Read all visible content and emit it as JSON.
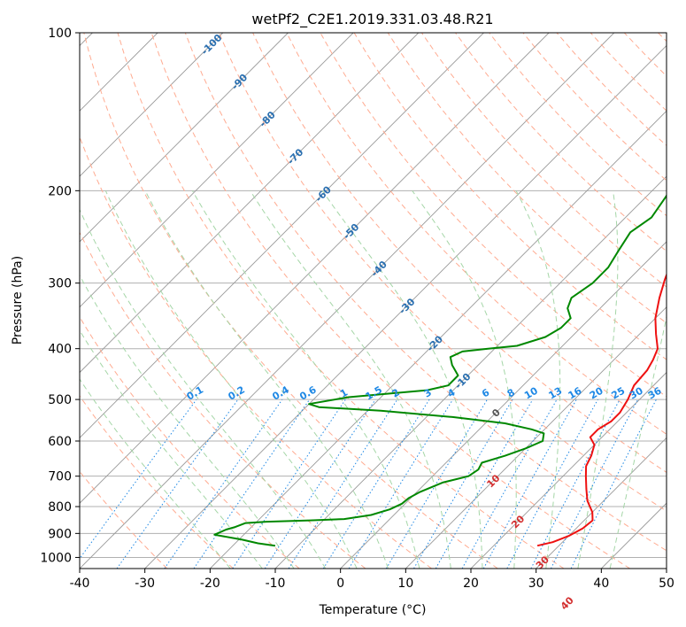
{
  "chart_data": {
    "type": "line",
    "subtype": "skew-t log-p diagram",
    "title": "wetPf2_C2E1.2019.331.03.48.R21",
    "xlabel": "Temperature (°C)",
    "ylabel": "Pressure (hPa)",
    "xlim": [
      -40,
      50
    ],
    "ylim": [
      1050,
      100
    ],
    "y_scale": "log",
    "x_ticks": [
      "-40",
      "-30",
      "-20",
      "-10",
      "0",
      "10",
      "20",
      "30",
      "40",
      "50"
    ],
    "y_ticks": [
      "100",
      "200",
      "300",
      "400",
      "500",
      "600",
      "700",
      "800",
      "900",
      "1000"
    ],
    "grid": true,
    "colors": {
      "temperature": "#ee1111",
      "dewpoint": "#008800",
      "isotherm": "#999999",
      "dry_adiabat": "#ffab91",
      "moist_adiabat": "#a5d6a7",
      "mixing_ratio": "#1e88e5",
      "saturation": "#d4b896"
    },
    "series": [
      {
        "key": "temperature",
        "points": [
          [
            26.7,
            950
          ],
          [
            28.5,
            935
          ],
          [
            30.0,
            910
          ],
          [
            31.0,
            880
          ],
          [
            31.3,
            850
          ],
          [
            30.0,
            820
          ],
          [
            27.5,
            780
          ],
          [
            25.5,
            740
          ],
          [
            23.5,
            700
          ],
          [
            22.0,
            670
          ],
          [
            21.2,
            640
          ],
          [
            20.0,
            610
          ],
          [
            18.2,
            590
          ],
          [
            18.2,
            570
          ],
          [
            19.0,
            550
          ],
          [
            19.0,
            530
          ],
          [
            18.2,
            500
          ],
          [
            17.0,
            470
          ],
          [
            16.7,
            440
          ],
          [
            16.0,
            420
          ],
          [
            15.0,
            400
          ],
          [
            12.5,
            375
          ],
          [
            10.0,
            350
          ],
          [
            7.5,
            320
          ],
          [
            5.5,
            295
          ],
          [
            4.0,
            275
          ],
          [
            3.5,
            255
          ],
          [
            2.5,
            235
          ],
          [
            1.5,
            210
          ],
          [
            0.8,
            190
          ],
          [
            0.5,
            170
          ],
          [
            1.0,
            150
          ],
          [
            2.0,
            135
          ],
          [
            2.0,
            125
          ],
          [
            1.5,
            115
          ],
          [
            1.0,
            100
          ]
        ]
      },
      {
        "key": "dewpoint",
        "points": [
          [
            -13.5,
            950
          ],
          [
            -16.5,
            940
          ],
          [
            -19.5,
            925
          ],
          [
            -24.5,
            905
          ],
          [
            -23.5,
            885
          ],
          [
            -22.5,
            875
          ],
          [
            -21.5,
            860
          ],
          [
            -18.5,
            855
          ],
          [
            -12.0,
            850
          ],
          [
            -7.0,
            845
          ],
          [
            -3.5,
            830
          ],
          [
            -1.5,
            810
          ],
          [
            -0.5,
            790
          ],
          [
            -0.3,
            770
          ],
          [
            0.5,
            750
          ],
          [
            2.5,
            720
          ],
          [
            5.5,
            700
          ],
          [
            6.0,
            680
          ],
          [
            5.5,
            660
          ],
          [
            8.0,
            640
          ],
          [
            10.0,
            620
          ],
          [
            11.5,
            600
          ],
          [
            10.5,
            580
          ],
          [
            8.0,
            570
          ],
          [
            3.0,
            555
          ],
          [
            -6.0,
            540
          ],
          [
            -18.0,
            525
          ],
          [
            -28.0,
            517
          ],
          [
            -30.0,
            510
          ],
          [
            -25.0,
            495
          ],
          [
            -14.0,
            480
          ],
          [
            -11.5,
            470
          ],
          [
            -11.5,
            450
          ],
          [
            -14.0,
            430
          ],
          [
            -15.5,
            415
          ],
          [
            -14.5,
            405
          ],
          [
            -11.0,
            400
          ],
          [
            -7.0,
            395
          ],
          [
            -4.0,
            380
          ],
          [
            -3.0,
            365
          ],
          [
            -3.0,
            350
          ],
          [
            -5.0,
            335
          ],
          [
            -6.0,
            320
          ],
          [
            -5.0,
            300
          ],
          [
            -5.0,
            280
          ],
          [
            -6.0,
            260
          ],
          [
            -7.0,
            240
          ],
          [
            -6.0,
            225
          ],
          [
            -7.0,
            205
          ],
          [
            -8.0,
            190
          ],
          [
            -8.0,
            170
          ],
          [
            -7.5,
            150
          ],
          [
            -6.0,
            135
          ],
          [
            -4.5,
            120
          ],
          [
            -2.5,
            110
          ],
          [
            -0.5,
            100
          ]
        ]
      }
    ],
    "isotherm_labels": [
      "-100",
      "-90",
      "-80",
      "-70",
      "-60",
      "-50",
      "-40",
      "-30",
      "-20",
      "-10",
      "0",
      "10",
      "20",
      "30",
      "40"
    ],
    "mixing_ratio_labels": [
      "0.1",
      "0.2",
      "0.4",
      "0.6",
      "1",
      "1.5",
      "2",
      "3",
      "4",
      "6",
      "8",
      "10",
      "13",
      "16",
      "20",
      "25",
      "30",
      "36"
    ]
  }
}
